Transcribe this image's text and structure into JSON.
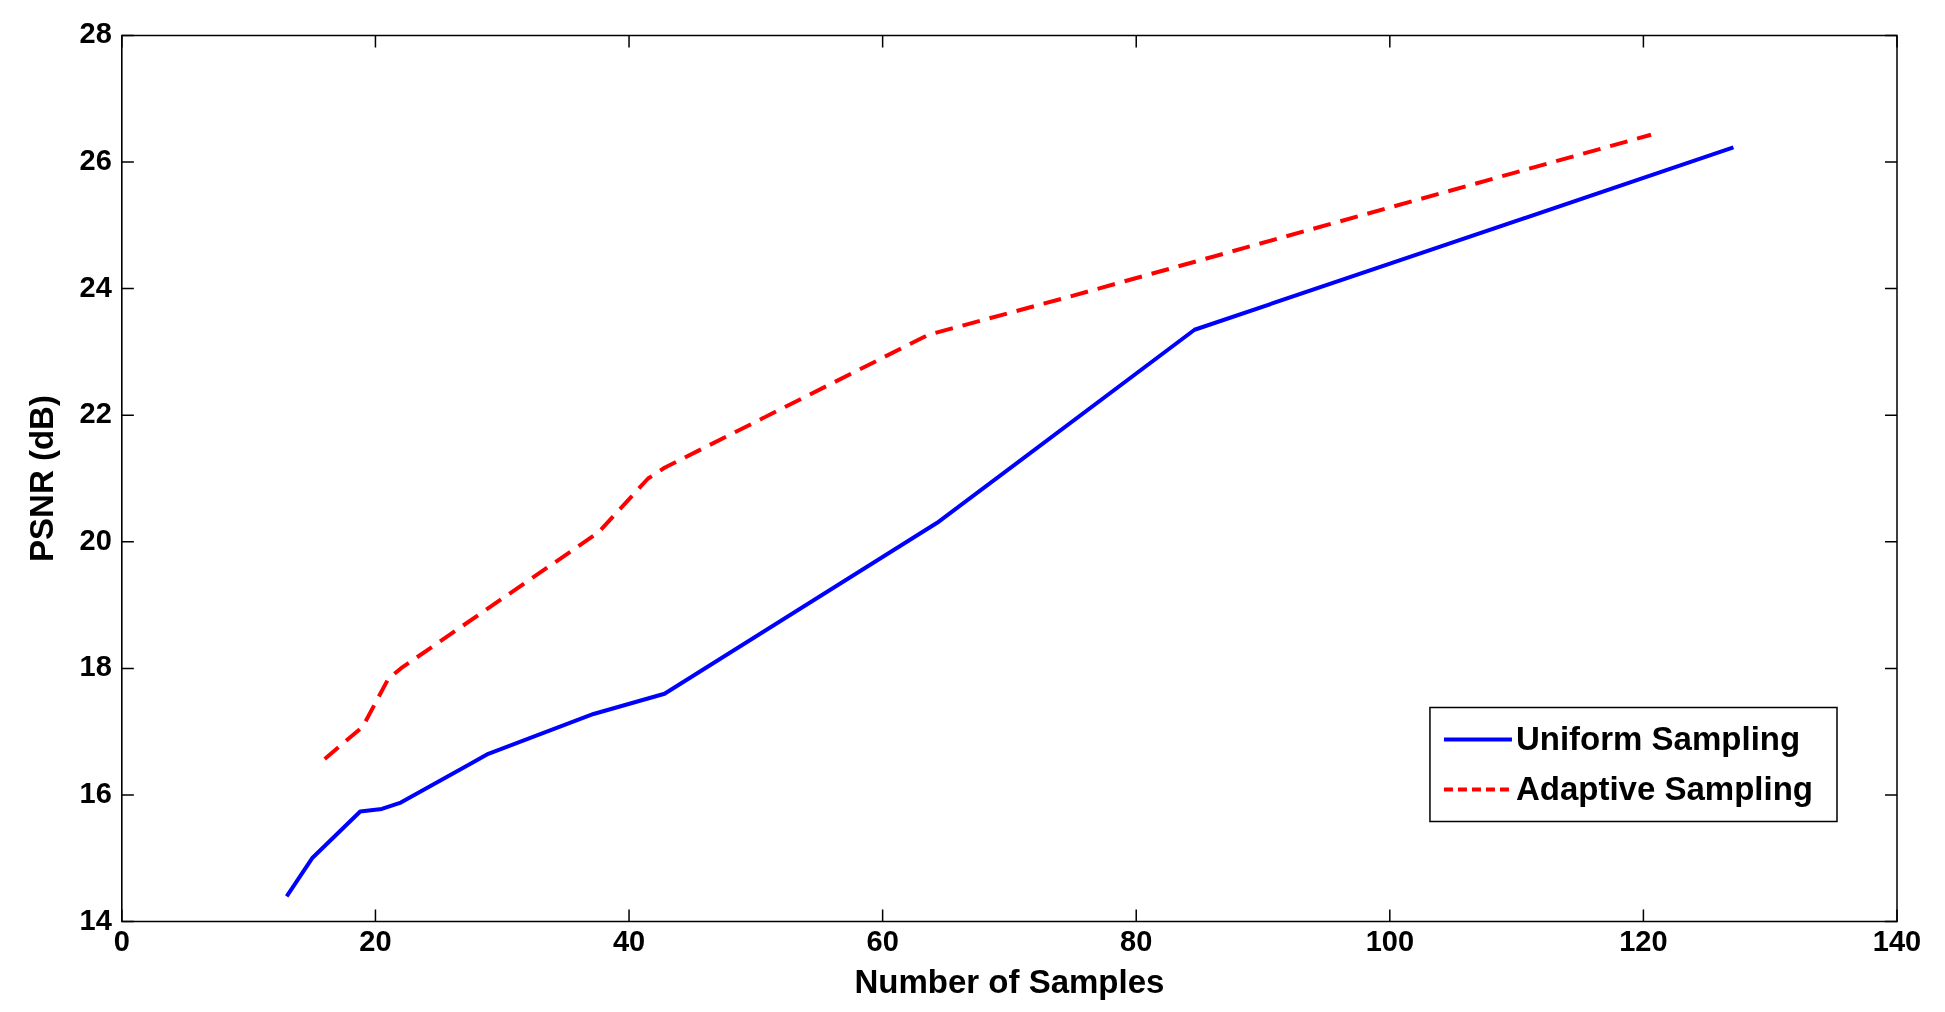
{
  "chart_data": {
    "type": "line",
    "xlabel": "Number of Samples",
    "ylabel": "PSNR (dB)",
    "xlim": [
      0,
      140
    ],
    "xticks": [
      0,
      20,
      40,
      60,
      80,
      100,
      120,
      140
    ],
    "ylim": [
      14,
      28
    ],
    "yticks": [
      14,
      16,
      18,
      20,
      22,
      24,
      26,
      28
    ],
    "grid": false,
    "legend": "bottom right",
    "marker": "none",
    "series": [
      {
        "name": "Uniform Sampling",
        "color": "#0000ff",
        "line_style": "solid",
        "x": [
          13.0,
          15.0,
          18.8,
          20.5,
          22.0,
          28.9,
          37.2,
          42.8,
          64.3,
          84.6,
          127.1
        ],
        "values": [
          14.4,
          15.0,
          15.74,
          15.78,
          15.88,
          16.65,
          17.28,
          17.6,
          20.3,
          23.35,
          26.23
        ]
      },
      {
        "name": "Adaptive Sampling",
        "color": "#ff0000",
        "line_style": "dashed",
        "x": [
          16.0,
          19.0,
          21.0,
          22.0,
          37.6,
          41.5,
          42.8,
          63.6,
          74.5,
          120.6
        ],
        "values": [
          16.57,
          17.08,
          17.83,
          18.0,
          20.15,
          21.0,
          21.17,
          23.27,
          23.86,
          26.43
        ]
      }
    ]
  }
}
